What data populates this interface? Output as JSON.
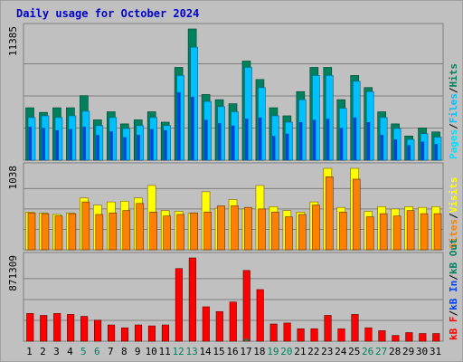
{
  "chart_data": {
    "type": "bar",
    "title": "Daily usage for October 2024",
    "title_color": "#0000cc",
    "categories": [
      "1",
      "2",
      "3",
      "4",
      "5",
      "6",
      "7",
      "8",
      "9",
      "10",
      "11",
      "12",
      "13",
      "14",
      "15",
      "16",
      "17",
      "18",
      "19",
      "20",
      "21",
      "22",
      "23",
      "24",
      "25",
      "26",
      "27",
      "28",
      "29",
      "30",
      "31"
    ],
    "weekend_categories": [
      "5",
      "6",
      "12",
      "13",
      "19",
      "20",
      "26",
      "27"
    ],
    "weekday_label_color": "#000000",
    "weekend_label_color": "#00805c",
    "colors": {
      "background": "#c0c0c0",
      "border": "#808080",
      "gridline": "#808080",
      "hits": "#00805c",
      "files": "#00c0ff",
      "pages": "#00e0ff",
      "visits": "#ffff00",
      "sites": "#ff8000",
      "kb_in": "#0040ff",
      "kb_out": "#00805c",
      "kb_f": "#ff0000"
    },
    "panels": [
      {
        "name": "hits-files-pages",
        "ymax_label": "11385",
        "ylim": [
          0,
          11385
        ],
        "legend": [
          "Pages",
          "/",
          "Files",
          "/",
          "Hits"
        ],
        "legend_colors": [
          "#00e0ff",
          "#000000",
          "#00c0ff",
          "#000000",
          "#00805c"
        ],
        "series": [
          {
            "name": "Hits",
            "values": [
              4550,
              4150,
              4550,
              4550,
              5600,
              3500,
              4200,
              3150,
              3500,
              4200,
              3300,
              8050,
              11385,
              5700,
              5250,
              4900,
              8600,
              7000,
              4550,
              3850,
              5950,
              8050,
              8050,
              5250,
              7350,
              6300,
              4200,
              3150,
              2100,
              2800,
              2450
            ]
          },
          {
            "name": "Files",
            "values": [
              3700,
              3850,
              3700,
              3850,
              4250,
              3000,
              3700,
              2750,
              3000,
              3700,
              3000,
              7350,
              9800,
              5100,
              4650,
              4200,
              8050,
              6300,
              3850,
              3300,
              5250,
              7350,
              7350,
              4500,
              6850,
              5950,
              3700,
              2750,
              1800,
              2300,
              2000
            ]
          },
          {
            "name": "Pages",
            "values": [
              2900,
              2800,
              2600,
              2700,
              2900,
              2200,
              2500,
              2000,
              2200,
              2700,
              2600,
              5900,
              5500,
              3500,
              3200,
              3000,
              3600,
              3700,
              2100,
              2300,
              3300,
              3500,
              3600,
              2800,
              3700,
              3300,
              2200,
              1800,
              1300,
              1600,
              1400
            ]
          }
        ]
      },
      {
        "name": "visits-sites",
        "ymax_label": "1038",
        "ylim": [
          0,
          1038
        ],
        "legend": [
          "Sites",
          "/",
          "Visits"
        ],
        "legend_colors": [
          "#ff8000",
          "#000000",
          "#ffff00"
        ],
        "series": [
          {
            "name": "Visits",
            "values": [
              480,
              470,
              450,
              470,
              660,
              570,
              610,
              620,
              660,
              820,
              500,
              490,
              470,
              740,
              530,
              640,
              520,
              820,
              550,
              500,
              480,
              610,
              1038,
              540,
              1038,
              490,
              550,
              520,
              550,
              540,
              550
            ]
          },
          {
            "name": "Sites",
            "values": [
              470,
              460,
              430,
              460,
              610,
              450,
              470,
              500,
              590,
              480,
              430,
              450,
              470,
              480,
              560,
              560,
              540,
              520,
              480,
              420,
              450,
              570,
              930,
              480,
              900,
              420,
              460,
              430,
              500,
              460,
              460
            ]
          }
        ]
      },
      {
        "name": "kbytes",
        "ymax_label": "871309",
        "ylim": [
          0,
          871309
        ],
        "legend": [
          "kB F",
          "/",
          "kB In",
          "/",
          "kB Out"
        ],
        "legend_colors": [
          "#ff0000",
          "#000000",
          "#0040ff",
          "#000000",
          "#00805c"
        ],
        "series": [
          {
            "name": "kB In",
            "values": [
              0,
              0,
              0,
              0,
              0,
              0,
              0,
              0,
              0,
              0,
              0,
              0,
              0,
              0,
              0,
              0,
              0,
              0,
              0,
              0,
              0,
              0,
              0,
              0,
              0,
              0,
              0,
              0,
              0,
              0,
              0
            ]
          },
          {
            "name": "kB Out",
            "values": [
              0,
              0,
              0,
              0,
              0,
              0,
              0,
              0,
              0,
              0,
              0,
              0,
              0,
              0,
              0,
              0,
              25000,
              0,
              0,
              0,
              0,
              0,
              0,
              0,
              0,
              0,
              0,
              0,
              0,
              0,
              0
            ]
          },
          {
            "name": "kB F",
            "values": [
              290000,
              270000,
              290000,
              280000,
              260000,
              220000,
              170000,
              140000,
              170000,
              160000,
              170000,
              760000,
              871309,
              360000,
              310000,
              410000,
              740000,
              540000,
              180000,
              190000,
              130000,
              130000,
              270000,
              130000,
              280000,
              140000,
              110000,
              60000,
              90000,
              80000,
              80000
            ]
          }
        ]
      }
    ]
  }
}
